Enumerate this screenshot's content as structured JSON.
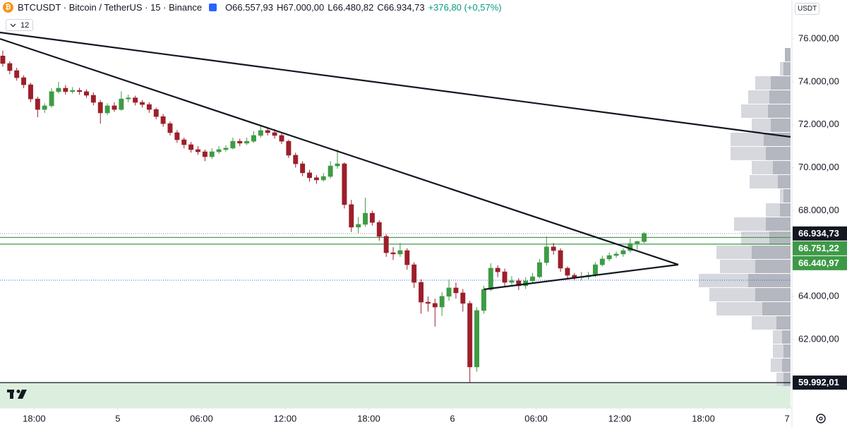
{
  "chart_data": {
    "type": "candlestick",
    "title": "BTCUSDT · Bitcoin / TetherUS · 15 · Binance",
    "legend_values": [
      "O66.557,93",
      "H67.000,00",
      "L66.480,82",
      "C66.934,73",
      "+376,80 (+0,57%)"
    ],
    "indicator_count": "12",
    "currency": "USDT",
    "up_color": "#3f9b45",
    "down_color": "#9c1f2a",
    "open": [
      75200,
      74850,
      74520,
      74190,
      73860,
      73200,
      72710,
      72880,
      73540,
      73700,
      73540,
      73600,
      73540,
      73370,
      73040,
      72550,
      72880,
      72710,
      73200,
      73250,
      73040,
      72940,
      72710,
      72380,
      72050,
      71630,
      71300,
      71070,
      70840,
      70740,
      70510,
      70740,
      70840,
      70910,
      71230,
      71140,
      71230,
      71500,
      71730,
      71630,
      71500,
      71230,
      70580,
      70180,
      69760,
      69530,
      69430,
      69590,
      70080,
      70180,
      68280,
      67230,
      67360,
      67880,
      67450,
      66800,
      66040,
      65980,
      66140,
      65480,
      64660,
      63740,
      63680,
      63510,
      64010,
      64400,
      64170,
      63680,
      60720,
      63350,
      64330,
      65320,
      65150,
      64660,
      64730,
      64500,
      64730,
      64920,
      65580,
      66310,
      66140,
      65320,
      64990,
      64890,
      64920,
      64990,
      65480,
      65750,
      65910,
      65980,
      66140,
      66470,
      66557.93
    ],
    "high": [
      75450,
      74950,
      74650,
      74300,
      73950,
      73300,
      73000,
      73700,
      74000,
      73850,
      73750,
      73720,
      73650,
      73500,
      73150,
      73000,
      73050,
      73550,
      73400,
      73350,
      73150,
      73050,
      72800,
      72500,
      72150,
      71750,
      71400,
      71200,
      71000,
      70850,
      70900,
      71000,
      71050,
      71400,
      71350,
      71400,
      71700,
      71950,
      71850,
      71800,
      71600,
      71300,
      70700,
      70300,
      69900,
      69650,
      69750,
      70300,
      70850,
      70250,
      68500,
      67700,
      68600,
      68000,
      67550,
      66900,
      66300,
      66500,
      66250,
      65600,
      64800,
      64000,
      63900,
      64200,
      64800,
      64650,
      64350,
      63800,
      63500,
      64500,
      65550,
      65450,
      65300,
      64950,
      64850,
      64900,
      65100,
      65750,
      66800,
      66500,
      66250,
      65400,
      65100,
      65150,
      65150,
      65600,
      65900,
      66050,
      66100,
      66250,
      66700,
      66600,
      67000
    ],
    "low": [
      74700,
      74350,
      74050,
      73700,
      73050,
      72350,
      72550,
      72800,
      73450,
      73400,
      73450,
      73400,
      73250,
      72900,
      72050,
      72450,
      72600,
      72650,
      73050,
      72900,
      72800,
      72550,
      72250,
      71900,
      71500,
      71150,
      70900,
      70700,
      70600,
      70300,
      70400,
      70650,
      70750,
      70850,
      71000,
      71050,
      71150,
      71400,
      71500,
      71350,
      71100,
      70450,
      70000,
      69600,
      69350,
      69250,
      69350,
      69500,
      69950,
      68100,
      67000,
      66950,
      67250,
      67300,
      66600,
      65850,
      65700,
      65850,
      65250,
      64400,
      63200,
      63300,
      62600,
      63100,
      63800,
      63900,
      63300,
      59992.01,
      60500,
      63200,
      64250,
      64900,
      64450,
      64500,
      64300,
      64350,
      64600,
      64850,
      65450,
      65950,
      65150,
      64850,
      64750,
      64750,
      64800,
      64900,
      65400,
      65650,
      65800,
      65850,
      66050,
      66200,
      66480.82
    ],
    "close": [
      74850,
      74520,
      74190,
      73860,
      73200,
      72710,
      72880,
      73540,
      73700,
      73540,
      73600,
      73540,
      73370,
      73040,
      72550,
      72880,
      72710,
      73200,
      73250,
      73040,
      72940,
      72710,
      72380,
      72050,
      71630,
      71300,
      71070,
      70840,
      70740,
      70510,
      70740,
      70840,
      70910,
      71230,
      71140,
      71230,
      71500,
      71730,
      71630,
      71500,
      71230,
      70580,
      70180,
      69760,
      69530,
      69430,
      69590,
      70080,
      70180,
      68280,
      67230,
      67360,
      67880,
      67450,
      66800,
      66040,
      65980,
      66140,
      65480,
      64660,
      63740,
      63680,
      63510,
      64010,
      64400,
      64170,
      63680,
      60720,
      63350,
      64330,
      65320,
      65150,
      64660,
      64730,
      64500,
      64730,
      64920,
      65580,
      66310,
      66140,
      65320,
      64990,
      64890,
      64920,
      64990,
      65480,
      65750,
      65910,
      65980,
      66140,
      66470,
      66557.93,
      66934.73
    ],
    "xlim": [
      -0.4,
      113
    ],
    "xticks": [
      {
        "value": 4.5,
        "label": "18:00"
      },
      {
        "value": 16.5,
        "label": "5"
      },
      {
        "value": 28.5,
        "label": "06:00"
      },
      {
        "value": 40.5,
        "label": "12:00"
      },
      {
        "value": 52.5,
        "label": "18:00"
      },
      {
        "value": 64.5,
        "label": "6"
      },
      {
        "value": 76.5,
        "label": "06:00"
      },
      {
        "value": 88.5,
        "label": "12:00"
      },
      {
        "value": 100.5,
        "label": "18:00"
      },
      {
        "value": 112.5,
        "label": "7"
      }
    ],
    "ylim": [
      58812,
      77807
    ],
    "yticks": [
      {
        "value": 76000,
        "label": "76.000,00"
      },
      {
        "value": 74000,
        "label": "74.000,00"
      },
      {
        "value": 72000,
        "label": "72.000,00"
      },
      {
        "value": 70000,
        "label": "70.000,00"
      },
      {
        "value": 68000,
        "label": "68.000,00"
      },
      {
        "value": 64000,
        "label": "64.000,00"
      },
      {
        "value": 62000,
        "label": "62.000,00"
      }
    ],
    "price_tags": [
      {
        "value": 66934.73,
        "label": "66.934,73",
        "color": "#131722",
        "line_color": "#9598a1",
        "line_style": "dotted"
      },
      {
        "value": 66751.22,
        "label": "66.751,22",
        "color": "#3c9a46",
        "line_color": "#3c9a46",
        "line_style": "solid"
      },
      {
        "value": 66440.97,
        "label": "66.440,97",
        "color": "#3c9a46",
        "line_color": "#3c9a46",
        "line_style": "solid"
      },
      {
        "value": 59992.01,
        "label": "59.992,01",
        "color": "#131722",
        "line_color": "#131722",
        "line_style": "solid"
      }
    ],
    "extra_lines": [
      {
        "value": 64760,
        "color": "#2962ff",
        "style": "dotted"
      }
    ],
    "zone": {
      "from": 59992.01,
      "color": "#dcefdf"
    },
    "trendlines": [
      {
        "x": [
          -0.4,
          113
        ],
        "y": [
          76296,
          71432
        ]
      },
      {
        "x": [
          -0.4,
          96.9
        ],
        "y": [
          76000,
          65484
        ]
      },
      {
        "x": [
          69,
          96.9
        ],
        "y": [
          64333,
          65484
        ]
      }
    ],
    "volume_profile": {
      "bins": [
        75573,
        74916,
        74259,
        73601,
        72944,
        72287,
        71629,
        70972,
        70315,
        69658,
        69000,
        68343,
        67686,
        67028,
        66371,
        65714,
        65056,
        64399,
        63742,
        63085,
        62427,
        61770,
        61113,
        60455,
        59798
      ],
      "total": [
        8,
        15,
        50,
        60,
        70,
        55,
        85,
        85,
        55,
        58,
        15,
        35,
        80,
        70,
        105,
        100,
        130,
        115,
        105,
        55,
        25,
        25,
        28,
        20
      ],
      "dark": [
        8,
        10,
        28,
        30,
        32,
        28,
        38,
        35,
        25,
        18,
        10,
        15,
        35,
        30,
        55,
        50,
        60,
        50,
        40,
        20,
        12,
        10,
        12,
        10
      ],
      "light_color": "#d6d8de",
      "dark_color": "#b4b7bf"
    }
  }
}
